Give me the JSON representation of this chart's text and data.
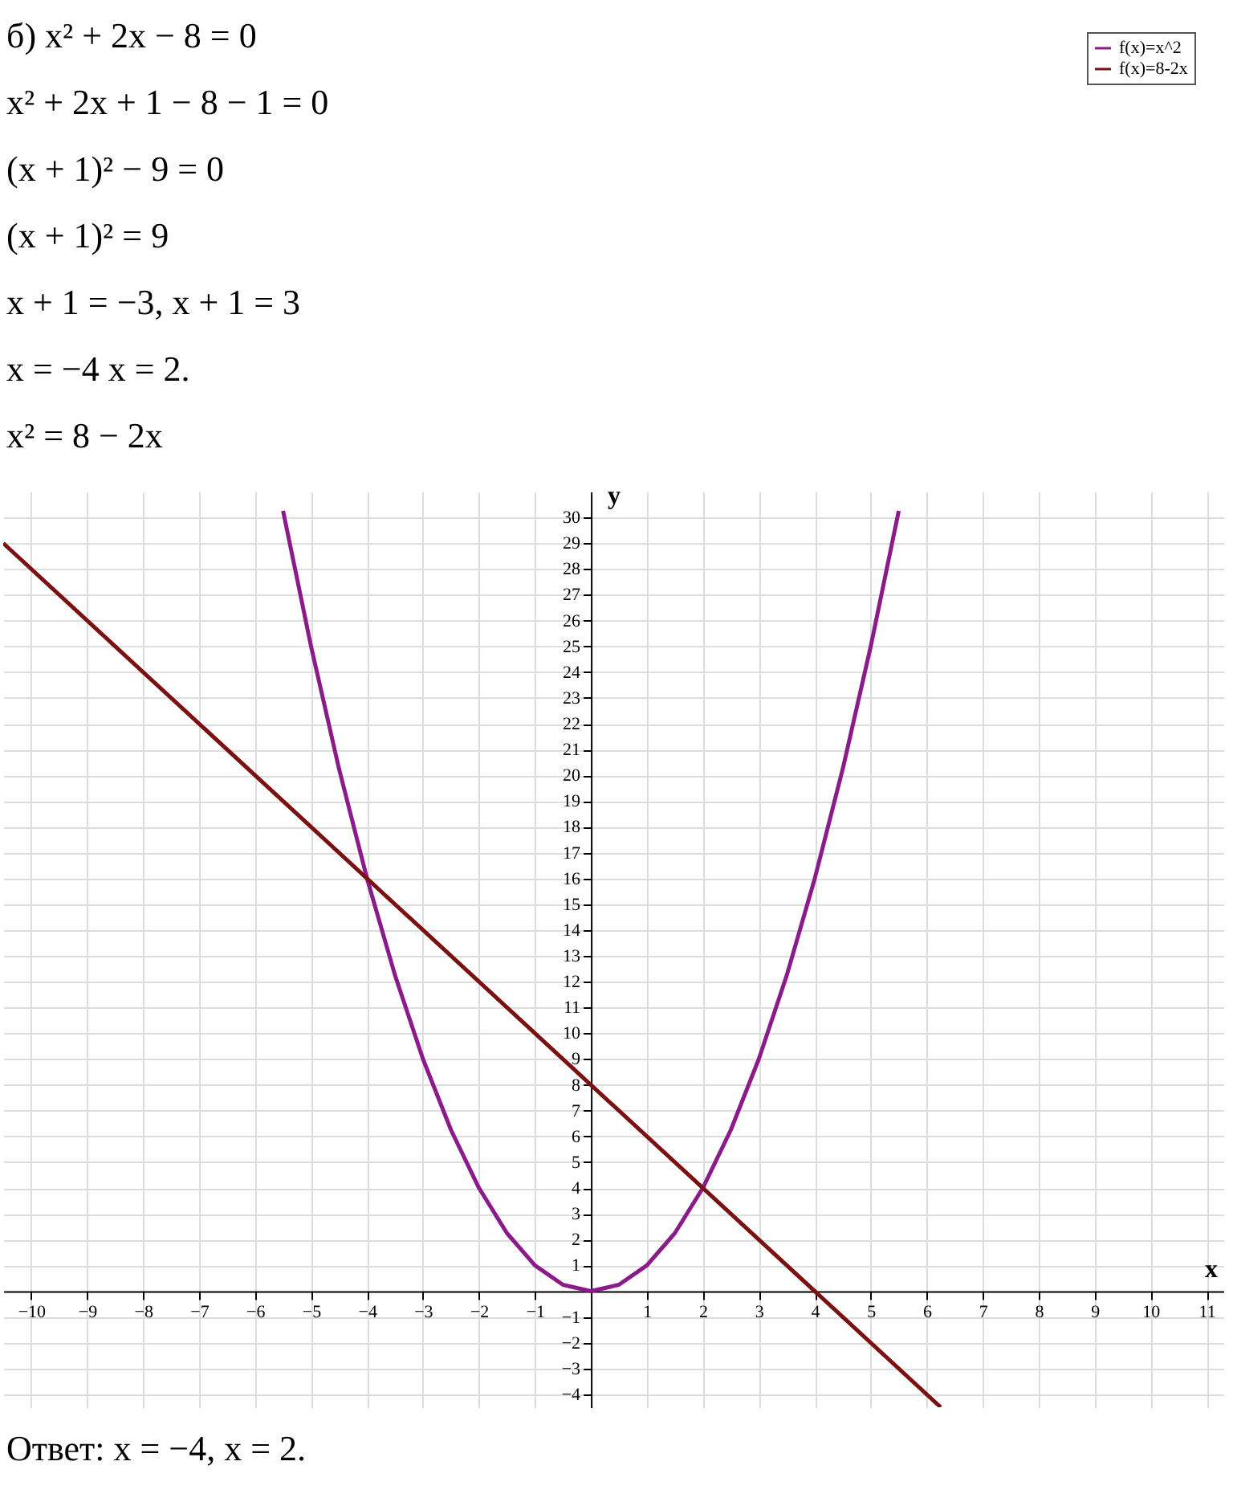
{
  "chart_data": {
    "type": "line",
    "annotations": [
      "б) x² + 2x − 8 = 0",
      "x² + 2x + 1 − 8 − 1 = 0",
      "(x + 1)² − 9 = 0",
      "(x + 1)² = 9",
      "x + 1 = −3,       x + 1 = 3",
      "x = −4                x = 2.",
      "x² = 8 − 2x",
      "Ответ: x = −4,       x = 2."
    ],
    "xlabel": "x",
    "ylabel": "y",
    "series": [
      {
        "name": "f(x)=x^2",
        "color": "#8b1a8b",
        "x": [
          -5.5,
          -5,
          -4.5,
          -4,
          -3.5,
          -3,
          -2.5,
          -2,
          -1.5,
          -1,
          -0.5,
          0,
          0.5,
          1,
          1.5,
          2,
          2.5,
          3,
          3.5,
          4,
          4.5,
          5,
          5.5
        ],
        "values": [
          30.25,
          25,
          20.25,
          16,
          12.25,
          9,
          6.25,
          4,
          2.25,
          1,
          0.25,
          0,
          0.25,
          1,
          2.25,
          4,
          6.25,
          9,
          12.25,
          16,
          20.25,
          25,
          30.25
        ]
      },
      {
        "name": "f(x)=8-2x",
        "color": "#7b1010",
        "x": [
          -10.5,
          6.25
        ],
        "values": [
          29,
          -4.5
        ]
      }
    ],
    "xlim": [
      -10.5,
      11.3
    ],
    "ylim": [
      -4.5,
      31
    ],
    "xticks": [
      -10,
      -9,
      -8,
      -7,
      -6,
      -5,
      -4,
      -3,
      -2,
      -1,
      1,
      2,
      3,
      4,
      5,
      6,
      7,
      8,
      9,
      10,
      11
    ],
    "yticks": [
      -4,
      -3,
      -2,
      -1,
      1,
      2,
      3,
      4,
      5,
      6,
      7,
      8,
      9,
      10,
      11,
      12,
      13,
      14,
      15,
      16,
      17,
      18,
      19,
      20,
      21,
      22,
      23,
      24,
      25,
      26,
      27,
      28,
      29,
      30
    ],
    "grid": true,
    "legend": "top right",
    "marker": "none",
    "line_style": "solid"
  }
}
